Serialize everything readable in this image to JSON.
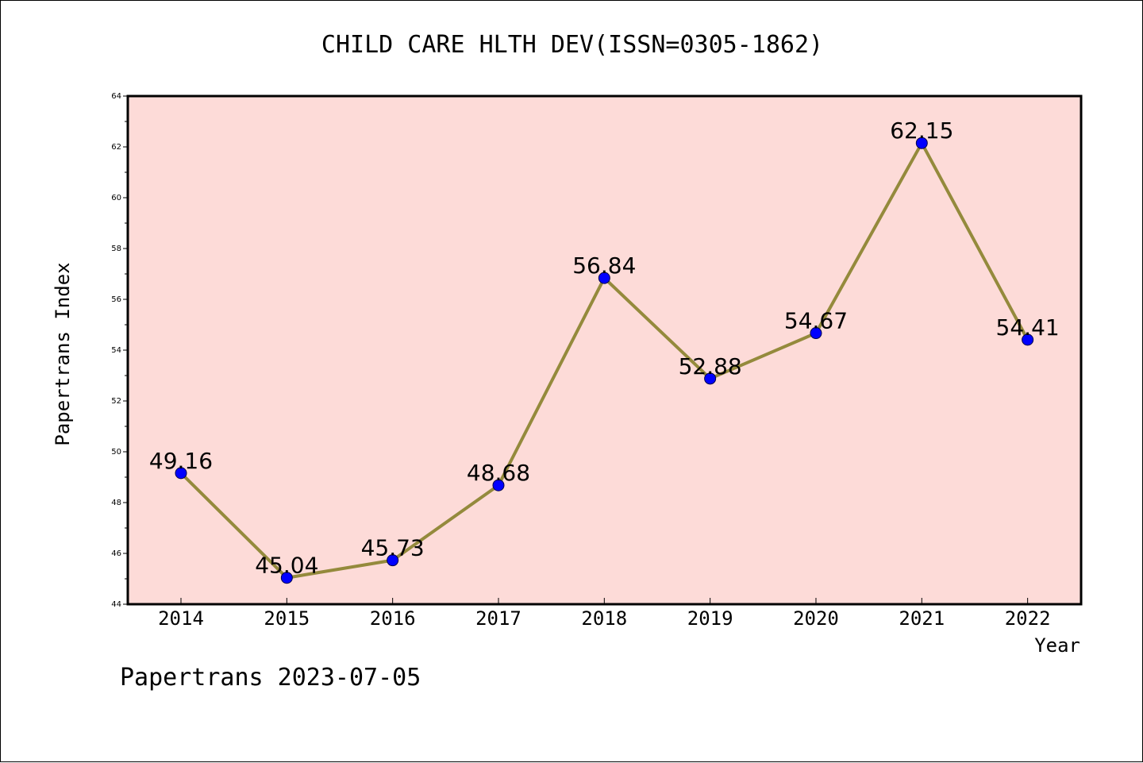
{
  "footer": {
    "text": "Papertrans 2023-07-05"
  },
  "chart_data": {
    "type": "line",
    "title": "CHILD CARE HLTH DEV(ISSN=0305-1862)",
    "xlabel": "Year",
    "ylabel": "Papertrans Index",
    "categories": [
      "2014",
      "2015",
      "2016",
      "2017",
      "2018",
      "2019",
      "2020",
      "2021",
      "2022"
    ],
    "values": [
      49.16,
      45.04,
      45.73,
      48.68,
      56.84,
      52.88,
      54.67,
      62.15,
      54.41
    ],
    "data_labels": [
      "49.16",
      "45.04",
      "45.73",
      "48.68",
      "56.84",
      "52.88",
      "54.67",
      "62.15",
      "54.41"
    ],
    "ylim": [
      44,
      64
    ],
    "yticks": [
      "44",
      "46",
      "48",
      "50",
      "52",
      "54",
      "56",
      "58",
      "60",
      "62",
      "64"
    ],
    "grid": false,
    "colors": {
      "plot_background": "#fddbd8",
      "line": "#948a3c",
      "marker": "#0000ff",
      "axis": "#000000"
    }
  }
}
